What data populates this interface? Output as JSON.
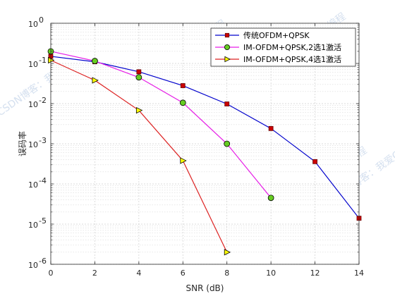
{
  "chart_data": {
    "type": "line",
    "title": "",
    "xlabel": "SNR (dB)",
    "ylabel": "误码率",
    "x_scale": "linear",
    "y_scale": "log",
    "xlim": [
      0,
      14
    ],
    "ylim": [
      1e-06,
      1
    ],
    "x_ticks": [
      0,
      2,
      4,
      6,
      8,
      10,
      12,
      14
    ],
    "y_tick_exponents": [
      0,
      -1,
      -2,
      -3,
      -4,
      -5,
      -6
    ],
    "y_tick_base": "10",
    "grid": true,
    "minor_grid": true,
    "legend_placement": "top-right",
    "series": [
      {
        "name": "传统OFDM+QPSK",
        "color": "#0000cc",
        "marker": "square",
        "marker_fill": "#cc0000",
        "x": [
          0,
          2,
          4,
          6,
          8,
          10,
          12,
          14
        ],
        "y": [
          0.15,
          0.11,
          0.062,
          0.028,
          0.0098,
          0.0024,
          0.00036,
          1.4e-05
        ]
      },
      {
        "name": "IM-OFDM+QPSK,2选1激活",
        "color": "#e61ee6",
        "marker": "circle",
        "marker_fill": "#66cc22",
        "x": [
          0,
          2,
          4,
          6,
          8,
          10
        ],
        "y": [
          0.2,
          0.115,
          0.045,
          0.0105,
          0.001,
          4.5e-05
        ]
      },
      {
        "name": "IM-OFDM+QPSK,4选1激活",
        "color": "#dd2222",
        "marker": "triangle-right",
        "marker_fill": "#ffff00",
        "x": [
          0,
          2,
          4,
          6,
          8
        ],
        "y": [
          0.12,
          0.038,
          0.0068,
          0.00038,
          2e-06
        ]
      }
    ]
  },
  "watermark": "CSDN博客：我爱C编程"
}
